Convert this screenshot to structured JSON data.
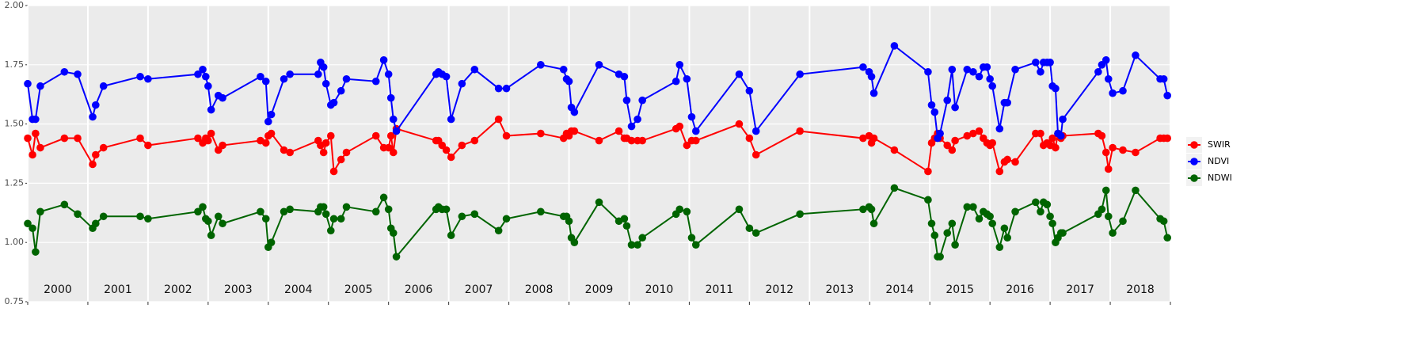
{
  "chart_data": {
    "type": "line",
    "x": [
      2000.0,
      2000.08,
      2000.13,
      2000.21,
      2000.61,
      2000.83,
      2001.08,
      2001.13,
      2001.26,
      2001.87,
      2002.0,
      2002.83,
      2002.91,
      2002.96,
      2003.0,
      2003.05,
      2003.17,
      2003.24,
      2003.87,
      2003.96,
      2004.0,
      2004.05,
      2004.26,
      2004.36,
      2004.83,
      2004.87,
      2004.92,
      2004.96,
      2005.04,
      2005.09,
      2005.21,
      2005.3,
      2005.79,
      2005.92,
      2006.0,
      2006.04,
      2006.08,
      2006.13,
      2006.79,
      2006.83,
      2006.89,
      2006.96,
      2007.04,
      2007.22,
      2007.43,
      2007.83,
      2007.96,
      2008.53,
      2008.91,
      2008.96,
      2009.0,
      2009.04,
      2009.09,
      2009.5,
      2009.83,
      2009.92,
      2009.96,
      2010.04,
      2010.14,
      2010.22,
      2010.78,
      2010.84,
      2010.96,
      2011.04,
      2011.11,
      2011.83,
      2012.0,
      2012.11,
      2012.84,
      2013.89,
      2013.99,
      2014.03,
      2014.07,
      2014.41,
      2014.97,
      2015.03,
      2015.08,
      2015.13,
      2015.17,
      2015.29,
      2015.37,
      2015.42,
      2015.62,
      2015.72,
      2015.82,
      2015.89,
      2015.95,
      2016.0,
      2016.04,
      2016.16,
      2016.24,
      2016.29,
      2016.42,
      2016.76,
      2016.84,
      2016.89,
      2016.95,
      2017.0,
      2017.04,
      2017.09,
      2017.13,
      2017.18,
      2017.21,
      2017.8,
      2017.86,
      2017.93,
      2017.97,
      2018.04,
      2018.21,
      2018.42,
      2018.83,
      2018.89,
      2018.95
    ],
    "series": [
      {
        "name": "SWIR",
        "color": "#ff0000",
        "values": [
          1.44,
          1.37,
          1.46,
          1.4,
          1.44,
          1.44,
          1.33,
          1.37,
          1.4,
          1.44,
          1.41,
          1.44,
          1.42,
          1.44,
          1.43,
          1.46,
          1.39,
          1.41,
          1.43,
          1.42,
          1.45,
          1.46,
          1.39,
          1.38,
          1.43,
          1.41,
          1.38,
          1.42,
          1.45,
          1.3,
          1.35,
          1.38,
          1.45,
          1.4,
          1.4,
          1.45,
          1.38,
          1.48,
          1.43,
          1.43,
          1.41,
          1.39,
          1.36,
          1.41,
          1.43,
          1.52,
          1.45,
          1.46,
          1.44,
          1.46,
          1.45,
          1.47,
          1.47,
          1.43,
          1.47,
          1.44,
          1.44,
          1.43,
          1.43,
          1.43,
          1.48,
          1.49,
          1.41,
          1.43,
          1.43,
          1.5,
          1.44,
          1.37,
          1.47,
          1.44,
          1.45,
          1.42,
          1.44,
          1.39,
          1.3,
          1.42,
          1.44,
          1.46,
          1.44,
          1.41,
          1.39,
          1.43,
          1.45,
          1.46,
          1.47,
          1.44,
          1.42,
          1.41,
          1.42,
          1.3,
          1.34,
          1.35,
          1.34,
          1.46,
          1.46,
          1.41,
          1.42,
          1.41,
          1.44,
          1.4,
          1.46,
          1.44,
          1.45,
          1.46,
          1.45,
          1.38,
          1.31,
          1.4,
          1.39,
          1.38,
          1.44,
          1.44,
          1.44
        ]
      },
      {
        "name": "NDVI",
        "color": "#0000ff",
        "values": [
          1.67,
          1.52,
          1.52,
          1.66,
          1.72,
          1.71,
          1.53,
          1.58,
          1.66,
          1.7,
          1.69,
          1.71,
          1.73,
          1.7,
          1.66,
          1.56,
          1.62,
          1.61,
          1.7,
          1.68,
          1.51,
          1.54,
          1.69,
          1.71,
          1.71,
          1.76,
          1.74,
          1.67,
          1.58,
          1.59,
          1.64,
          1.69,
          1.68,
          1.77,
          1.71,
          1.61,
          1.52,
          1.47,
          1.71,
          1.72,
          1.71,
          1.7,
          1.52,
          1.67,
          1.73,
          1.65,
          1.65,
          1.75,
          1.73,
          1.69,
          1.68,
          1.57,
          1.55,
          1.75,
          1.71,
          1.7,
          1.6,
          1.49,
          1.52,
          1.6,
          1.68,
          1.75,
          1.69,
          1.53,
          1.47,
          1.71,
          1.64,
          1.47,
          1.71,
          1.74,
          1.72,
          1.7,
          1.63,
          1.83,
          1.72,
          1.58,
          1.55,
          1.44,
          1.46,
          1.6,
          1.73,
          1.57,
          1.73,
          1.72,
          1.7,
          1.74,
          1.74,
          1.69,
          1.66,
          1.48,
          1.59,
          1.59,
          1.73,
          1.76,
          1.72,
          1.76,
          1.76,
          1.76,
          1.66,
          1.65,
          1.46,
          1.45,
          1.52,
          1.72,
          1.75,
          1.77,
          1.69,
          1.63,
          1.64,
          1.79,
          1.69,
          1.69,
          1.62
        ]
      },
      {
        "name": "NDWI",
        "color": "#006400",
        "values": [
          1.08,
          1.06,
          0.96,
          1.13,
          1.16,
          1.12,
          1.06,
          1.08,
          1.11,
          1.11,
          1.1,
          1.13,
          1.15,
          1.1,
          1.09,
          1.03,
          1.11,
          1.08,
          1.13,
          1.1,
          0.98,
          1.0,
          1.13,
          1.14,
          1.13,
          1.15,
          1.15,
          1.12,
          1.05,
          1.1,
          1.1,
          1.15,
          1.13,
          1.19,
          1.14,
          1.06,
          1.04,
          0.94,
          1.14,
          1.15,
          1.14,
          1.14,
          1.03,
          1.11,
          1.12,
          1.05,
          1.1,
          1.13,
          1.11,
          1.11,
          1.09,
          1.02,
          1.0,
          1.17,
          1.09,
          1.1,
          1.07,
          0.99,
          0.99,
          1.02,
          1.12,
          1.14,
          1.13,
          1.02,
          0.99,
          1.14,
          1.06,
          1.04,
          1.12,
          1.14,
          1.15,
          1.14,
          1.08,
          1.23,
          1.18,
          1.08,
          1.03,
          0.94,
          0.94,
          1.04,
          1.08,
          0.99,
          1.15,
          1.15,
          1.1,
          1.13,
          1.12,
          1.11,
          1.08,
          0.98,
          1.06,
          1.02,
          1.13,
          1.17,
          1.13,
          1.17,
          1.16,
          1.11,
          1.08,
          1.0,
          1.02,
          1.04,
          1.04,
          1.12,
          1.14,
          1.22,
          1.11,
          1.04,
          1.09,
          1.22,
          1.1,
          1.09,
          1.02
        ]
      }
    ],
    "xlim": [
      2000,
      2019
    ],
    "xticks": [
      2000,
      2001,
      2002,
      2003,
      2004,
      2005,
      2006,
      2007,
      2008,
      2009,
      2010,
      2011,
      2012,
      2013,
      2014,
      2015,
      2016,
      2017,
      2018,
      2019
    ],
    "year_labels": [
      "2000",
      "2001",
      "2002",
      "2003",
      "2004",
      "2005",
      "2006",
      "2007",
      "2008",
      "2009",
      "2010",
      "2011",
      "2012",
      "2013",
      "2014",
      "2015",
      "2016",
      "2017",
      "2018"
    ],
    "ylim": [
      0.75,
      2.0
    ],
    "yticks": [
      {
        "value": 0.75,
        "label": "0.75"
      },
      {
        "value": 1.0,
        "label": "1.00"
      },
      {
        "value": 1.25,
        "label": "1.25"
      },
      {
        "value": 1.5,
        "label": "1.50"
      },
      {
        "value": 1.75,
        "label": "1.75"
      },
      {
        "value": 2.0,
        "label": "2.00"
      }
    ],
    "grid": true,
    "legend": "right"
  }
}
